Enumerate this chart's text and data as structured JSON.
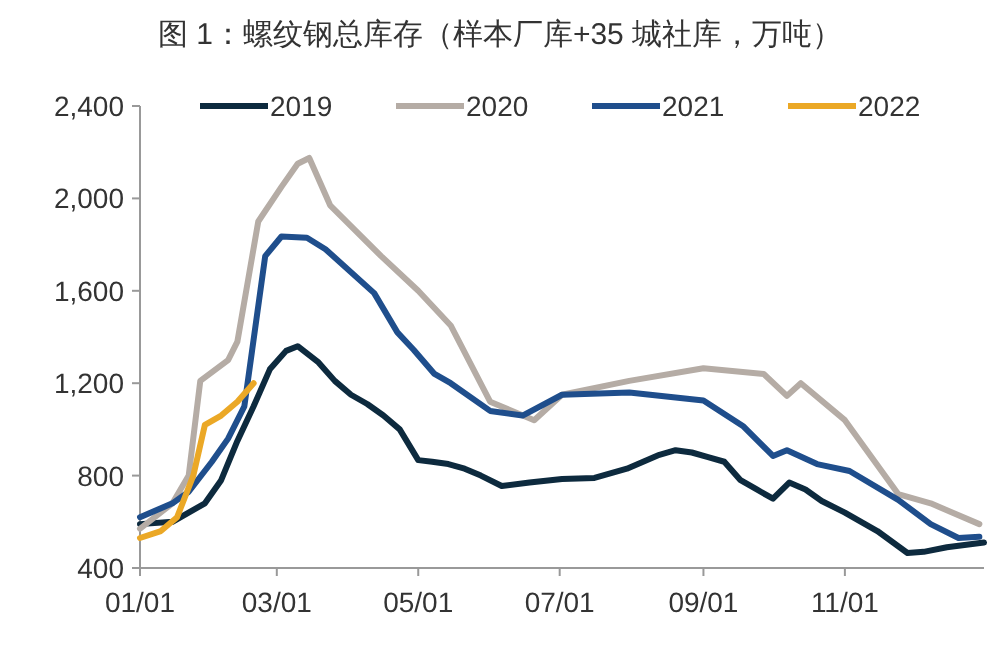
{
  "chart_data": {
    "type": "line",
    "title": "图 1：螺纹钢总库存（样本厂库+35 城社库，万吨）",
    "xlim": [
      "--01-01",
      "--12-31"
    ],
    "xticks": [
      {
        "value": "--01-01",
        "label": "01/01"
      },
      {
        "value": "--03-01",
        "label": "03/01"
      },
      {
        "value": "--05-01",
        "label": "05/01"
      },
      {
        "value": "--07-01",
        "label": "07/01"
      },
      {
        "value": "--09-01",
        "label": "09/01"
      },
      {
        "value": "--11-01",
        "label": "11/01"
      }
    ],
    "ylim": [
      400,
      2400
    ],
    "yticks": [
      {
        "value": 400,
        "label": "400"
      },
      {
        "value": 800,
        "label": "800"
      },
      {
        "value": 1200,
        "label": "1,200"
      },
      {
        "value": 1600,
        "label": "1,600"
      },
      {
        "value": 2000,
        "label": "2,000"
      },
      {
        "value": 2400,
        "label": "2,400"
      }
    ],
    "grid": false,
    "legend": "top",
    "marker": "none",
    "line_style": "solid",
    "series": [
      {
        "name": "2019",
        "color": "#0d2a3e",
        "x": [
          "--01-01",
          "--01-15",
          "--01-29",
          "--02-05",
          "--02-12",
          "--02-19",
          "--02-26",
          "--03-05",
          "--03-10",
          "--03-19",
          "--03-26",
          "--04-02",
          "--04-09",
          "--04-16",
          "--04-23",
          "--05-01",
          "--05-07",
          "--05-14",
          "--05-21",
          "--05-28",
          "--06-06",
          "--06-18",
          "--07-02",
          "--07-16",
          "--07-30",
          "--08-13",
          "--08-20",
          "--08-27",
          "--09-03",
          "--09-10",
          "--09-17",
          "--09-24",
          "--10-01",
          "--10-08",
          "--10-15",
          "--10-22",
          "--11-01",
          "--11-15",
          "--11-28",
          "--12-05",
          "--12-15",
          "--12-31"
        ],
        "values": [
          590,
          600,
          680,
          780,
          950,
          1100,
          1260,
          1340,
          1360,
          1290,
          1210,
          1150,
          1110,
          1060,
          1000,
          867,
          860,
          850,
          830,
          800,
          755,
          770,
          785,
          790,
          830,
          890,
          910,
          900,
          880,
          860,
          780,
          740,
          700,
          770,
          740,
          690,
          640,
          560,
          465,
          470,
          490,
          510
        ]
      },
      {
        "name": "2020",
        "color": "#b5aca5",
        "x": [
          "--01-01",
          "--01-15",
          "--01-22",
          "--01-27",
          "--02-08",
          "--02-12",
          "--02-21",
          "--03-03",
          "--03-10",
          "--03-15",
          "--03-24",
          "--04-15",
          "--05-01",
          "--05-15",
          "--06-01",
          "--06-20",
          "--07-02",
          "--07-31",
          "--09-01",
          "--09-27",
          "--10-07",
          "--10-13",
          "--11-01",
          "--11-24",
          "--12-08",
          "--12-29"
        ],
        "values": [
          570,
          680,
          800,
          1210,
          1300,
          1380,
          1900,
          2050,
          2150,
          2175,
          1970,
          1750,
          1600,
          1450,
          1120,
          1040,
          1150,
          1210,
          1265,
          1240,
          1145,
          1200,
          1040,
          720,
          680,
          590
        ]
      },
      {
        "name": "2021",
        "color": "#1f4e8c",
        "x": [
          "--01-01",
          "--01-15",
          "--01-22",
          "--02-01",
          "--02-08",
          "--02-15",
          "--02-24",
          "--03-03",
          "--03-14",
          "--03-22",
          "--04-12",
          "--04-22",
          "--04-29",
          "--05-08",
          "--05-15",
          "--06-01",
          "--06-15",
          "--07-02",
          "--07-31",
          "--09-01",
          "--09-18",
          "--10-01",
          "--10-07",
          "--10-20",
          "--11-03",
          "--11-24",
          "--12-08",
          "--12-20",
          "--12-29"
        ],
        "values": [
          620,
          680,
          730,
          860,
          960,
          1100,
          1750,
          1835,
          1830,
          1780,
          1590,
          1420,
          1345,
          1240,
          1200,
          1080,
          1060,
          1150,
          1160,
          1125,
          1015,
          885,
          910,
          850,
          820,
          695,
          590,
          530,
          535
        ]
      },
      {
        "name": "2022",
        "color": "#eba826",
        "x": [
          "--01-01",
          "--01-10",
          "--01-17",
          "--01-24",
          "--01-29",
          "--02-05",
          "--02-12",
          "--02-19"
        ],
        "values": [
          530,
          560,
          620,
          800,
          1020,
          1060,
          1120,
          1200
        ]
      }
    ]
  }
}
